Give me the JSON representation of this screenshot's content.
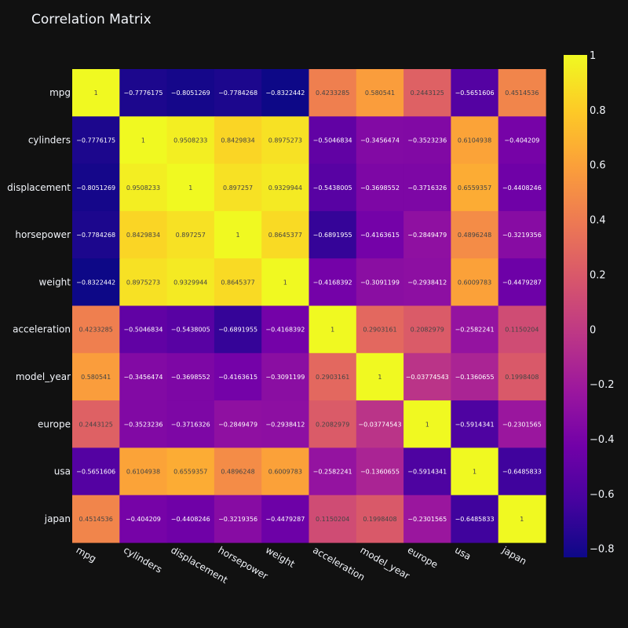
{
  "chart_data": {
    "type": "heatmap",
    "title": "Correlation Matrix",
    "xlabel": "",
    "ylabel": "",
    "variables": [
      "mpg",
      "cylinders",
      "displacement",
      "horsepower",
      "weight",
      "acceleration",
      "model_year",
      "europe",
      "usa",
      "japan"
    ],
    "values": [
      [
        1,
        -0.7776175,
        -0.8051269,
        -0.7784268,
        -0.8322442,
        0.4233285,
        0.580541,
        0.2443125,
        -0.5651606,
        0.4514536
      ],
      [
        -0.7776175,
        1,
        0.9508233,
        0.8429834,
        0.8975273,
        -0.5046834,
        -0.3456474,
        -0.3523236,
        0.6104938,
        -0.404209
      ],
      [
        -0.8051269,
        0.9508233,
        1,
        0.897257,
        0.9329944,
        -0.5438005,
        -0.3698552,
        -0.3716326,
        0.6559357,
        -0.4408246
      ],
      [
        -0.7784268,
        0.8429834,
        0.897257,
        1,
        0.8645377,
        -0.6891955,
        -0.4163615,
        -0.2849479,
        0.4896248,
        -0.3219356
      ],
      [
        -0.8322442,
        0.8975273,
        0.9329944,
        0.8645377,
        1,
        -0.4168392,
        -0.3091199,
        -0.2938412,
        0.6009783,
        -0.4479287
      ],
      [
        0.4233285,
        -0.5046834,
        -0.5438005,
        -0.6891955,
        -0.4168392,
        1,
        0.2903161,
        0.2082979,
        -0.2582241,
        0.1150204
      ],
      [
        0.580541,
        -0.3456474,
        -0.3698552,
        -0.4163615,
        -0.3091199,
        0.2903161,
        1,
        -0.03774543,
        -0.1360655,
        0.1998408
      ],
      [
        0.2443125,
        -0.3523236,
        -0.3716326,
        -0.2849479,
        -0.2938412,
        0.2082979,
        -0.03774543,
        1,
        -0.5914341,
        -0.2301565
      ],
      [
        -0.5651606,
        0.6104938,
        0.6559357,
        0.4896248,
        0.6009783,
        -0.2582241,
        -0.1360655,
        -0.5914341,
        1,
        -0.6485833
      ],
      [
        0.4514536,
        -0.404209,
        -0.4408246,
        -0.3219356,
        -0.4479287,
        0.1150204,
        0.1998408,
        -0.2301565,
        -0.6485833,
        1
      ]
    ],
    "colorscale": "plasma",
    "zrange": [
      -0.8322442,
      1
    ],
    "colorbar_ticks": [
      1,
      0.8,
      0.6,
      0.4,
      0.2,
      0,
      -0.2,
      -0.4,
      -0.6,
      -0.8
    ],
    "colorbar_placement": "right"
  }
}
